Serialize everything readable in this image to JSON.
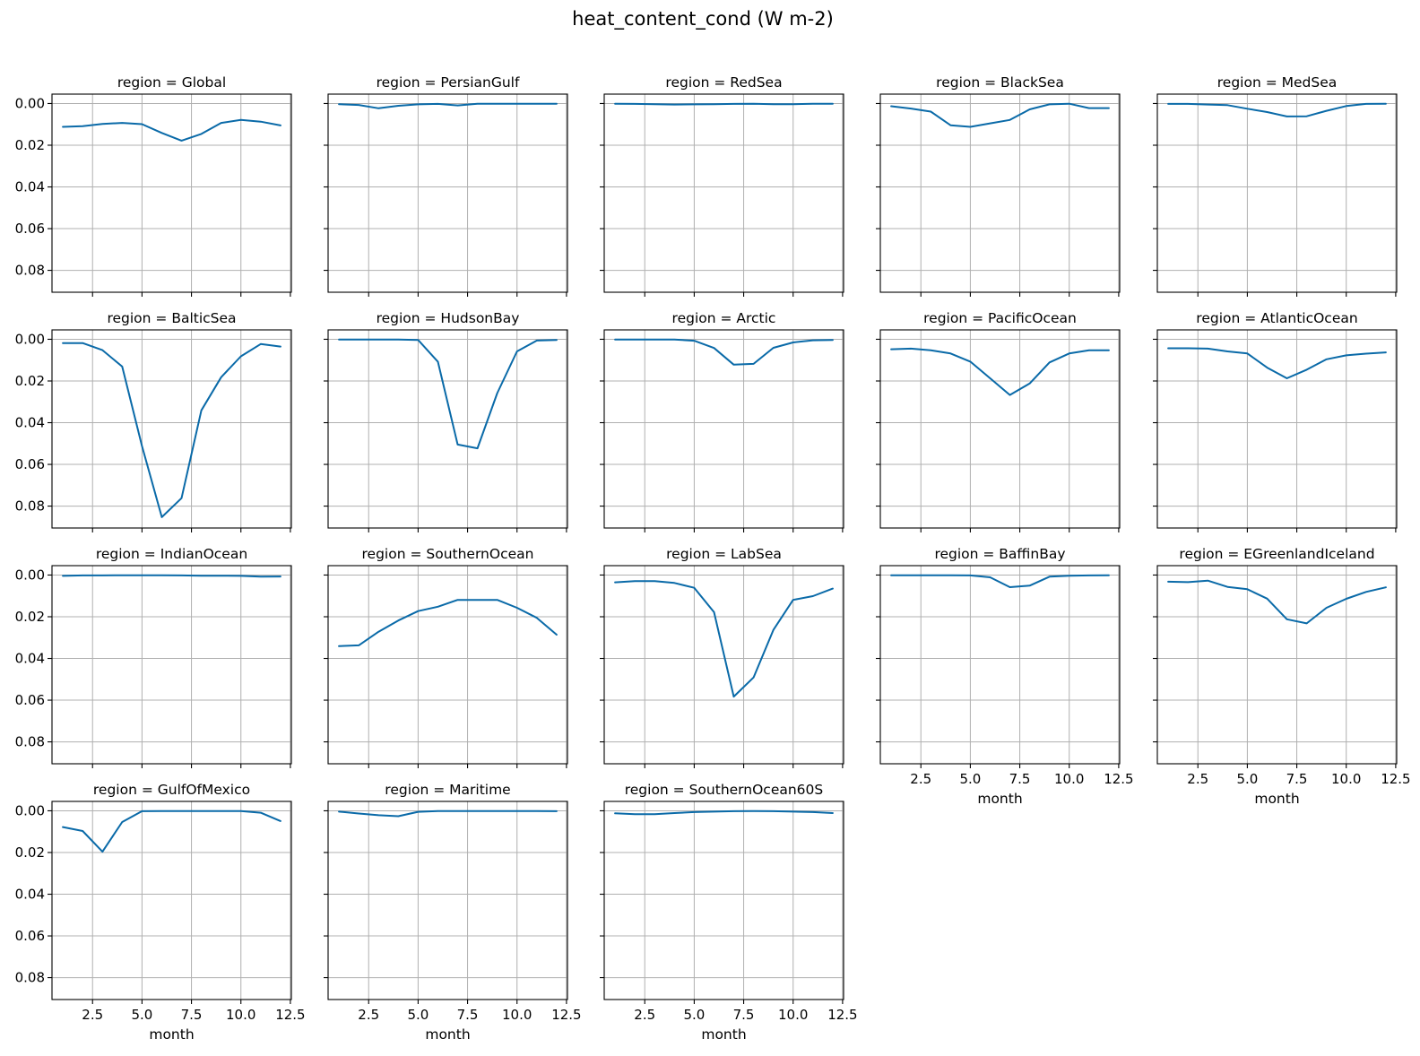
{
  "chart_data": {
    "type": "line",
    "title": "heat_content_cond (W m-2)",
    "xlabel": "month",
    "xlim": [
      0.45,
      12.55
    ],
    "ylim": [
      0.0905,
      -0.0045
    ],
    "y_inverted": true,
    "grid": true,
    "xticks": [
      2.5,
      5.0,
      7.5,
      10.0,
      12.5
    ],
    "xtick_labels": [
      "2.5",
      "5.0",
      "7.5",
      "10.0",
      "12.5"
    ],
    "yticks": [
      0.0,
      0.02,
      0.04,
      0.06,
      0.08
    ],
    "ytick_labels": [
      "0.00",
      "0.02",
      "0.04",
      "0.06",
      "0.08"
    ],
    "line_color": "#0a6aa8",
    "panels": [
      {
        "title": "region = Global",
        "x": [
          1,
          2,
          3,
          4,
          5,
          6,
          7,
          8,
          9,
          10,
          11,
          12
        ],
        "y": [
          0.0112,
          0.0109,
          0.0098,
          0.0093,
          0.0099,
          0.0141,
          0.0178,
          0.0146,
          0.0093,
          0.0079,
          0.0087,
          0.0105
        ]
      },
      {
        "title": "region = PersianGulf",
        "x": [
          1,
          2,
          3,
          4,
          5,
          6,
          7,
          8,
          9,
          10,
          11,
          12
        ],
        "y": [
          0.0003,
          0.0007,
          0.0023,
          0.0011,
          0.0004,
          0.0002,
          0.0009,
          0.0001,
          0.0001,
          0.0001,
          0.0001,
          0.0001
        ]
      },
      {
        "title": "region = RedSea",
        "x": [
          1,
          2,
          3,
          4,
          5,
          6,
          7,
          8,
          9,
          10,
          11,
          12
        ],
        "y": [
          0.0001,
          0.0002,
          0.0003,
          0.0005,
          0.0004,
          0.0003,
          0.0002,
          0.0001,
          0.0003,
          0.0003,
          0.0001,
          0.0001
        ]
      },
      {
        "title": "region = BlackSea",
        "x": [
          1,
          2,
          3,
          4,
          5,
          6,
          7,
          8,
          9,
          10,
          11,
          12
        ],
        "y": [
          0.0013,
          0.0024,
          0.0039,
          0.0104,
          0.0112,
          0.0095,
          0.0079,
          0.0028,
          0.0004,
          0.0001,
          0.0022,
          0.0022
        ]
      },
      {
        "title": "region = MedSea",
        "x": [
          1,
          2,
          3,
          4,
          5,
          6,
          7,
          8,
          9,
          10,
          11,
          12
        ],
        "y": [
          0.0002,
          0.0002,
          0.0005,
          0.0008,
          0.0025,
          0.0041,
          0.0062,
          0.0061,
          0.0035,
          0.0012,
          0.0002,
          0.0001
        ]
      },
      {
        "title": "region = BalticSea",
        "x": [
          1,
          2,
          3,
          4,
          5,
          6,
          7,
          8,
          9,
          10,
          11,
          12
        ],
        "y": [
          0.0018,
          0.0018,
          0.0052,
          0.0131,
          0.0512,
          0.0853,
          0.0762,
          0.0341,
          0.0182,
          0.0082,
          0.0023,
          0.0035
        ]
      },
      {
        "title": "region = HudsonBay",
        "x": [
          1,
          2,
          3,
          4,
          5,
          6,
          7,
          8,
          9,
          10,
          11,
          12
        ],
        "y": [
          0.0001,
          0.0001,
          0.0001,
          0.0001,
          0.0003,
          0.0108,
          0.0505,
          0.0523,
          0.0258,
          0.0058,
          0.0006,
          0.0003
        ]
      },
      {
        "title": "region = Arctic",
        "x": [
          1,
          2,
          3,
          4,
          5,
          6,
          7,
          8,
          9,
          10,
          11,
          12
        ],
        "y": [
          0.0001,
          0.0001,
          0.0001,
          0.0001,
          0.0007,
          0.0042,
          0.0122,
          0.0118,
          0.0041,
          0.0015,
          0.0005,
          0.0003
        ]
      },
      {
        "title": "region = PacificOcean",
        "x": [
          1,
          2,
          3,
          4,
          5,
          6,
          7,
          8,
          9,
          10,
          11,
          12
        ],
        "y": [
          0.0048,
          0.0045,
          0.0053,
          0.0068,
          0.0107,
          0.0187,
          0.0267,
          0.0212,
          0.0111,
          0.0068,
          0.0053,
          0.0053
        ]
      },
      {
        "title": "region = AtlanticOcean",
        "x": [
          1,
          2,
          3,
          4,
          5,
          6,
          7,
          8,
          9,
          10,
          11,
          12
        ],
        "y": [
          0.0043,
          0.0043,
          0.0045,
          0.0058,
          0.0068,
          0.0136,
          0.0187,
          0.0146,
          0.0096,
          0.0077,
          0.0069,
          0.0063
        ]
      },
      {
        "title": "region = IndianOcean",
        "x": [
          1,
          2,
          3,
          4,
          5,
          6,
          7,
          8,
          9,
          10,
          11,
          12
        ],
        "y": [
          0.0004,
          0.0002,
          0.0002,
          0.0001,
          0.0001,
          0.0001,
          0.0002,
          0.0003,
          0.0003,
          0.0004,
          0.0008,
          0.0007
        ]
      },
      {
        "title": "region = SouthernOcean",
        "x": [
          1,
          2,
          3,
          4,
          5,
          6,
          7,
          8,
          9,
          10,
          11,
          12
        ],
        "y": [
          0.0341,
          0.0337,
          0.0272,
          0.0218,
          0.0173,
          0.0152,
          0.0119,
          0.0119,
          0.0119,
          0.0157,
          0.0205,
          0.0286
        ]
      },
      {
        "title": "region = LabSea",
        "x": [
          1,
          2,
          3,
          4,
          5,
          6,
          7,
          8,
          9,
          10,
          11,
          12
        ],
        "y": [
          0.0035,
          0.0029,
          0.0029,
          0.0038,
          0.0061,
          0.0178,
          0.0583,
          0.0491,
          0.0263,
          0.0119,
          0.0101,
          0.0065
        ]
      },
      {
        "title": "region = BaffinBay",
        "x": [
          1,
          2,
          3,
          4,
          5,
          6,
          7,
          8,
          9,
          10,
          11,
          12
        ],
        "y": [
          0.0001,
          0.0001,
          0.0001,
          0.0001,
          0.0002,
          0.0011,
          0.0058,
          0.0051,
          0.0008,
          0.0003,
          0.0002,
          0.0001
        ]
      },
      {
        "title": "region = EGreenlandIceland",
        "x": [
          1,
          2,
          3,
          4,
          5,
          6,
          7,
          8,
          9,
          10,
          11,
          12
        ],
        "y": [
          0.0032,
          0.0034,
          0.0027,
          0.0057,
          0.0068,
          0.0113,
          0.0212,
          0.0232,
          0.0157,
          0.0114,
          0.0081,
          0.0059
        ]
      },
      {
        "title": "region = GulfOfMexico",
        "x": [
          1,
          2,
          3,
          4,
          5,
          6,
          7,
          8,
          9,
          10,
          11,
          12
        ],
        "y": [
          0.0078,
          0.0097,
          0.0196,
          0.0054,
          0.0002,
          0.0001,
          0.0001,
          0.0001,
          0.0001,
          0.0001,
          0.0009,
          0.0049
        ]
      },
      {
        "title": "region = Maritime",
        "x": [
          1,
          2,
          3,
          4,
          5,
          6,
          7,
          8,
          9,
          10,
          11,
          12
        ],
        "y": [
          0.0004,
          0.0013,
          0.0021,
          0.0026,
          0.0005,
          0.0001,
          0.0001,
          0.0001,
          0.0001,
          0.0001,
          0.0001,
          0.0002
        ]
      },
      {
        "title": "region = SouthernOcean60S",
        "x": [
          1,
          2,
          3,
          4,
          5,
          6,
          7,
          8,
          9,
          10,
          11,
          12
        ],
        "y": [
          0.0012,
          0.0016,
          0.0016,
          0.0011,
          0.0006,
          0.0004,
          0.0002,
          0.0001,
          0.0002,
          0.0004,
          0.0006,
          0.0011
        ]
      }
    ]
  }
}
